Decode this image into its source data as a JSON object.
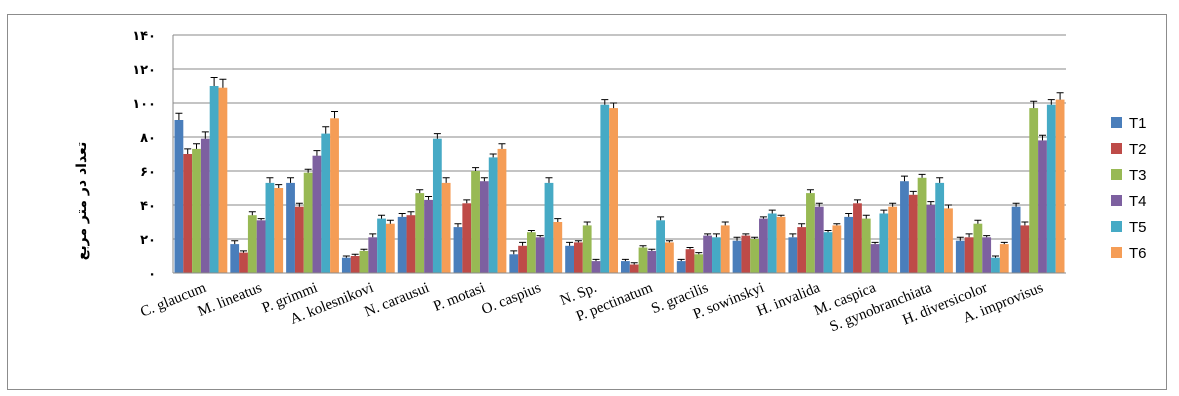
{
  "chart_data": {
    "type": "bar",
    "title": "",
    "xlabel": "",
    "ylabel": "تعداد در متر مربع",
    "ylim": [
      0,
      140
    ],
    "yticks": [
      0,
      20,
      40,
      60,
      80,
      100,
      120,
      140
    ],
    "ytick_labels": [
      "٠",
      "٢٠",
      "۴٠",
      "۶٠",
      "٨٠",
      "١٠٠",
      "١٢٠",
      "١۴٠"
    ],
    "grid": true,
    "legend_position": "right",
    "categories": [
      "C. glaucum",
      "M. lineatus",
      "P. grimmi",
      "A. kolesnikovi",
      "N. carausui",
      "P. motasi",
      "O. caspius",
      "N. Sp.",
      "P. pectinatum",
      "S. gracilis",
      "P. sowinskyi",
      "H. invalida",
      "M. caspica",
      "S. gynobranchiata",
      "H. diversicolor",
      "A. improvisus"
    ],
    "series": [
      {
        "name": "T1",
        "color": "#4a7ebb",
        "values": [
          90,
          17,
          53,
          9,
          33,
          27,
          11,
          16,
          7,
          7,
          19,
          21,
          33,
          54,
          19,
          39
        ],
        "errors": [
          4,
          2,
          3,
          1,
          2,
          2,
          2,
          2,
          1,
          1,
          2,
          2,
          2,
          3,
          2,
          2
        ]
      },
      {
        "name": "T2",
        "color": "#be4b48",
        "values": [
          70,
          12,
          39,
          10,
          34,
          41,
          16,
          18,
          5,
          14,
          22,
          27,
          41,
          46,
          21,
          28
        ],
        "errors": [
          3,
          1,
          2,
          1,
          2,
          2,
          2,
          1,
          1,
          1,
          1,
          2,
          2,
          2,
          2,
          2
        ]
      },
      {
        "name": "T3",
        "color": "#98b954",
        "values": [
          73,
          34,
          59,
          13,
          47,
          60,
          24,
          28,
          15,
          11,
          20,
          47,
          32,
          56,
          29,
          97
        ],
        "errors": [
          3,
          2,
          2,
          1,
          2,
          2,
          1,
          2,
          1,
          1,
          1,
          2,
          2,
          2,
          2,
          4
        ]
      },
      {
        "name": "T4",
        "color": "#7d60a0",
        "values": [
          79,
          31,
          69,
          21,
          43,
          54,
          21,
          7,
          13,
          22,
          32,
          39,
          17,
          40,
          21,
          78
        ],
        "errors": [
          4,
          1,
          3,
          2,
          2,
          2,
          1,
          1,
          1,
          1,
          1,
          2,
          1,
          2,
          1,
          3
        ]
      },
      {
        "name": "T5",
        "color": "#46aac5",
        "values": [
          110,
          53,
          82,
          32,
          79,
          68,
          53,
          99,
          31,
          21,
          35,
          24,
          35,
          53,
          9,
          99
        ],
        "errors": [
          5,
          3,
          4,
          2,
          3,
          2,
          3,
          3,
          2,
          2,
          2,
          1,
          2,
          3,
          1,
          3
        ]
      },
      {
        "name": "T6",
        "color": "#f59d56",
        "values": [
          109,
          50,
          91,
          29,
          53,
          73,
          30,
          97,
          18,
          28,
          33,
          28,
          39,
          38,
          17,
          102
        ],
        "errors": [
          5,
          2,
          4,
          2,
          3,
          3,
          2,
          3,
          1,
          2,
          1,
          1,
          2,
          2,
          1,
          4
        ]
      }
    ]
  }
}
